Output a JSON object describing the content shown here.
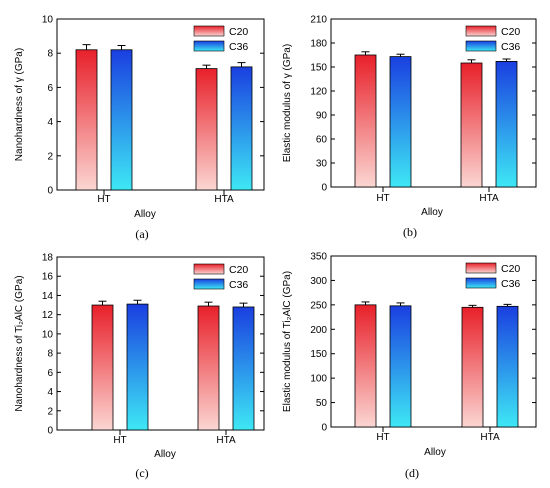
{
  "chart_data": [
    {
      "type": "bar",
      "panel_label": "(a)",
      "categories": [
        "HT",
        "HTA"
      ],
      "series": [
        {
          "name": "C20",
          "values": [
            8.2,
            7.1
          ],
          "errors": [
            0.3,
            0.2
          ]
        },
        {
          "name": "C36",
          "values": [
            8.2,
            7.2
          ],
          "errors": [
            0.25,
            0.25
          ]
        }
      ],
      "xlabel": "Alloy",
      "ylabel": "Nanohardness of γ (GPa)",
      "ylim": [
        0,
        10
      ],
      "yticks": [
        0,
        2,
        4,
        6,
        8,
        10
      ],
      "legend": "top-right",
      "grid": false
    },
    {
      "type": "bar",
      "panel_label": "(b)",
      "categories": [
        "HT",
        "HTA"
      ],
      "series": [
        {
          "name": "C20",
          "values": [
            165,
            155
          ],
          "errors": [
            4,
            4
          ]
        },
        {
          "name": "C36",
          "values": [
            163,
            157
          ],
          "errors": [
            3,
            3
          ]
        }
      ],
      "xlabel": "Alloy",
      "ylabel": "Elastic modulus of γ (GPa)",
      "ylim": [
        0,
        210
      ],
      "yticks": [
        0,
        30,
        60,
        90,
        120,
        150,
        180,
        210
      ],
      "legend": "top-right",
      "grid": false
    },
    {
      "type": "bar",
      "panel_label": "(c)",
      "categories": [
        "HT",
        "HTA"
      ],
      "series": [
        {
          "name": "C20",
          "values": [
            13.0,
            12.9
          ],
          "errors": [
            0.4,
            0.4
          ]
        },
        {
          "name": "C36",
          "values": [
            13.1,
            12.8
          ],
          "errors": [
            0.4,
            0.4
          ]
        }
      ],
      "xlabel": "Alloy",
      "ylabel": "Nanohardness of Ti₂AlC (GPa)",
      "ylim": [
        0,
        18
      ],
      "yticks": [
        0,
        2,
        4,
        6,
        8,
        10,
        12,
        14,
        16,
        18
      ],
      "legend": "top-right",
      "grid": false
    },
    {
      "type": "bar",
      "panel_label": "(d)",
      "categories": [
        "HT",
        "HTA"
      ],
      "series": [
        {
          "name": "C20",
          "values": [
            250,
            245
          ],
          "errors": [
            6,
            4
          ]
        },
        {
          "name": "C36",
          "values": [
            248,
            247
          ],
          "errors": [
            6,
            4
          ]
        }
      ],
      "xlabel": "Alloy",
      "ylabel": "Elastic modulus of Ti₂AlC (GPa)",
      "ylim": [
        0,
        350
      ],
      "yticks": [
        0,
        50,
        100,
        150,
        200,
        250,
        300,
        350
      ],
      "legend": "top-right",
      "grid": false
    }
  ],
  "colors": {
    "C20_top": "#e8202a",
    "C20_bottom": "#fbd6d2",
    "C36_top": "#1a3fe0",
    "C36_bottom": "#3ee8f5"
  }
}
